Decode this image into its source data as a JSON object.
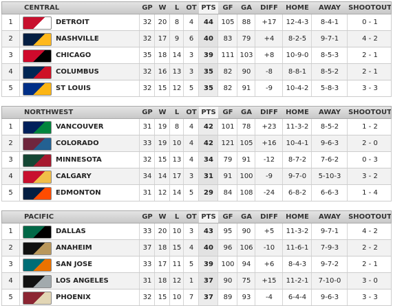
{
  "divisions": [
    {
      "name": "CENTRAL",
      "columns": [
        "GP",
        "W",
        "L",
        "OT",
        "PTS",
        "GF",
        "GA",
        "DIFF",
        "HOME",
        "AWAY",
        "SHOOTOUT"
      ],
      "rows": [
        {
          "rank": "1",
          "team": "DETROIT",
          "stats": [
            "32",
            "20",
            "8",
            "4",
            "44",
            "105",
            "88",
            "+17",
            "12-4-3",
            "8-4-1",
            "0 - 1"
          ]
        },
        {
          "rank": "2",
          "team": "NASHVILLE",
          "stats": [
            "32",
            "17",
            "9",
            "6",
            "40",
            "83",
            "79",
            "+4",
            "8-2-5",
            "9-7-1",
            "4 - 2"
          ]
        },
        {
          "rank": "3",
          "team": "CHICAGO",
          "stats": [
            "35",
            "18",
            "14",
            "3",
            "39",
            "111",
            "103",
            "+8",
            "10-9-0",
            "8-5-3",
            "2 - 1"
          ]
        },
        {
          "rank": "4",
          "team": "COLUMBUS",
          "stats": [
            "32",
            "16",
            "13",
            "3",
            "35",
            "82",
            "90",
            "-8",
            "8-8-1",
            "8-5-2",
            "2 - 1"
          ]
        },
        {
          "rank": "5",
          "team": "ST LOUIS",
          "stats": [
            "32",
            "15",
            "12",
            "5",
            "35",
            "82",
            "91",
            "-9",
            "10-4-2",
            "5-8-3",
            "3 - 3"
          ]
        }
      ]
    },
    {
      "name": "NORTHWEST",
      "columns": [
        "GP",
        "W",
        "L",
        "OT",
        "PTS",
        "GF",
        "GA",
        "DIFF",
        "HOME",
        "AWAY",
        "SHOOTOUT"
      ],
      "rows": [
        {
          "rank": "1",
          "team": "VANCOUVER",
          "stats": [
            "31",
            "19",
            "8",
            "4",
            "42",
            "101",
            "78",
            "+23",
            "11-3-2",
            "8-5-2",
            "1 - 2"
          ]
        },
        {
          "rank": "2",
          "team": "COLORADO",
          "stats": [
            "33",
            "19",
            "10",
            "4",
            "42",
            "121",
            "105",
            "+16",
            "10-4-1",
            "9-6-3",
            "2 - 0"
          ]
        },
        {
          "rank": "3",
          "team": "MINNESOTA",
          "stats": [
            "32",
            "15",
            "13",
            "4",
            "34",
            "79",
            "91",
            "-12",
            "8-7-2",
            "7-6-2",
            "0 - 3"
          ]
        },
        {
          "rank": "4",
          "team": "CALGARY",
          "stats": [
            "34",
            "14",
            "17",
            "3",
            "31",
            "91",
            "100",
            "-9",
            "9-7-0",
            "5-10-3",
            "3 - 2"
          ]
        },
        {
          "rank": "5",
          "team": "EDMONTON",
          "stats": [
            "31",
            "12",
            "14",
            "5",
            "29",
            "84",
            "108",
            "-24",
            "6-8-2",
            "6-6-3",
            "1 - 4"
          ]
        }
      ]
    },
    {
      "name": "PACIFIC",
      "columns": [
        "GP",
        "W",
        "L",
        "OT",
        "PTS",
        "GF",
        "GA",
        "DIFF",
        "HOME",
        "AWAY",
        "SHOOTOUT"
      ],
      "rows": [
        {
          "rank": "1",
          "team": "DALLAS",
          "stats": [
            "33",
            "20",
            "10",
            "3",
            "43",
            "95",
            "90",
            "+5",
            "11-3-2",
            "9-7-1",
            "4 - 2"
          ]
        },
        {
          "rank": "2",
          "team": "ANAHEIM",
          "stats": [
            "37",
            "18",
            "15",
            "4",
            "40",
            "96",
            "106",
            "-10",
            "11-6-1",
            "7-9-3",
            "2 - 2"
          ]
        },
        {
          "rank": "3",
          "team": "SAN JOSE",
          "stats": [
            "33",
            "17",
            "11",
            "5",
            "39",
            "100",
            "94",
            "+6",
            "8-4-3",
            "9-7-2",
            "2 - 1"
          ]
        },
        {
          "rank": "4",
          "team": "LOS ANGELES",
          "stats": [
            "31",
            "18",
            "12",
            "1",
            "37",
            "90",
            "75",
            "+15",
            "11-2-1",
            "7-10-0",
            "3 - 0"
          ]
        },
        {
          "rank": "5",
          "team": "PHOENIX",
          "stats": [
            "32",
            "15",
            "10",
            "7",
            "37",
            "89",
            "93",
            "-4",
            "6-4-4",
            "9-6-3",
            "3 - 3"
          ]
        }
      ]
    }
  ]
}
